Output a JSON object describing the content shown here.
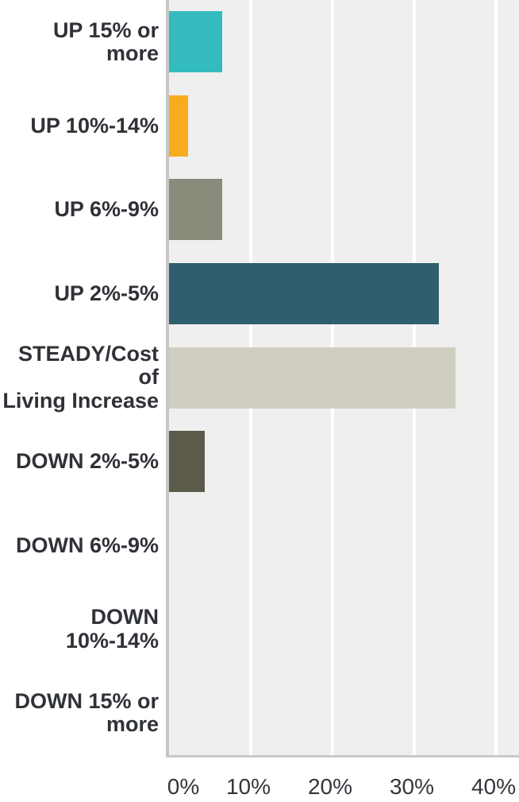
{
  "chart_data": {
    "type": "bar",
    "orientation": "horizontal",
    "title": "",
    "xlabel": "",
    "ylabel": "",
    "categories": [
      "UP 15% or more",
      "UP 10%-14%",
      "UP 6%-9%",
      "UP 2%-5%",
      "STEADY/Cost of\nLiving Increase",
      "DOWN 2%-5%",
      "DOWN 6%-9%",
      "DOWN 10%-14%",
      "DOWN 15% or\nmore"
    ],
    "values": [
      6.5,
      2.3,
      6.5,
      33,
      35,
      4.4,
      0,
      0,
      0
    ],
    "unit": "%",
    "bar_colors": [
      "#33BBBE",
      "#F6AC1D",
      "#8A8C7B",
      "#2F5F6D",
      "#CFCEC0",
      "#5B5A4B",
      "#5B5A4B",
      "#5B5A4B",
      "#5B5A4B"
    ],
    "x_ticks": [
      "0%",
      "10%",
      "20%",
      "30%",
      "40%"
    ],
    "x_tick_values": [
      0,
      10,
      20,
      30,
      40
    ],
    "xlim": [
      0,
      42.8
    ],
    "grid": "vertical-white-gridlines",
    "legend": "none",
    "plot_background": "#EFEFEF",
    "gridline_color": "#FFFFFF",
    "axis_line_color": "#C6C6C6",
    "label_text_color": "#2F3237"
  }
}
